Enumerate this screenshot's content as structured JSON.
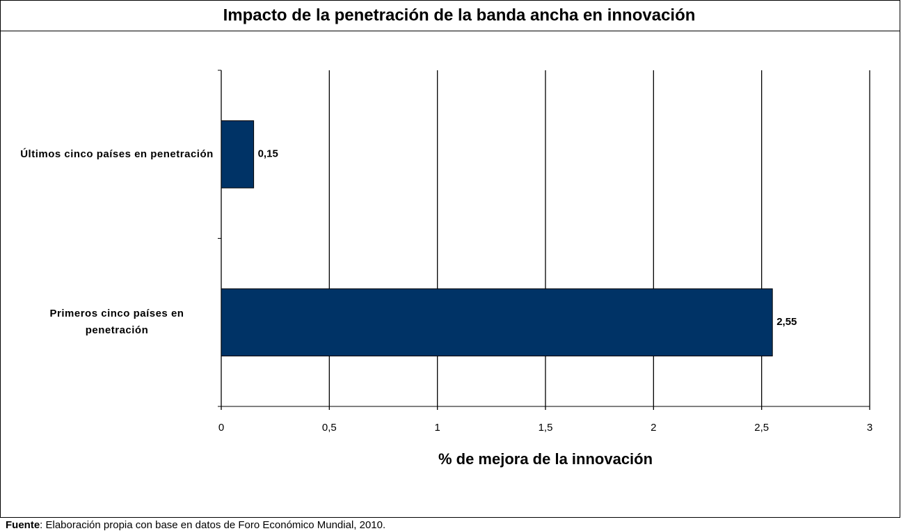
{
  "chart_data": {
    "type": "barh",
    "title": "Impacto de la penetración de la banda ancha en innovación",
    "categories": [
      "Últimos cinco países en penetración",
      "Primeros cinco países en penetración"
    ],
    "values": [
      0.15,
      2.55
    ],
    "value_labels": [
      "0,15",
      "2,55"
    ],
    "color": "#003366",
    "xlim": [
      0,
      3
    ],
    "xticks": [
      0,
      {
        "value": 0.5,
        "label": "0,5"
      },
      1,
      {
        "value": 1.5,
        "label": "1,5"
      },
      2,
      {
        "value": 2.5,
        "label": "2,5"
      },
      3
    ],
    "grid": true,
    "xlabel": "% de mejora de la innovación",
    "source_label": "Fuente",
    "source_text": ": Elaboración propia con base en datos de Foro Económico Mundial, 2010."
  }
}
